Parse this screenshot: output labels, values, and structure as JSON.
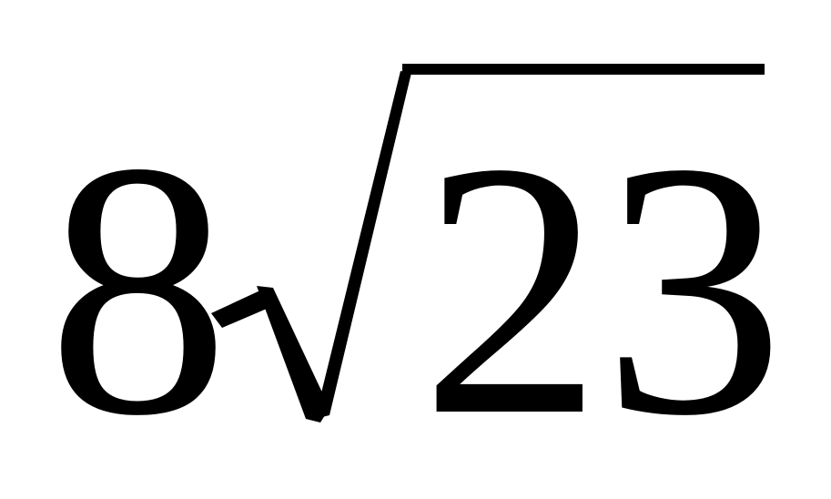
{
  "expression": {
    "coefficient": "8",
    "radicand": "23",
    "operator": "square-root",
    "color": "#000000"
  }
}
